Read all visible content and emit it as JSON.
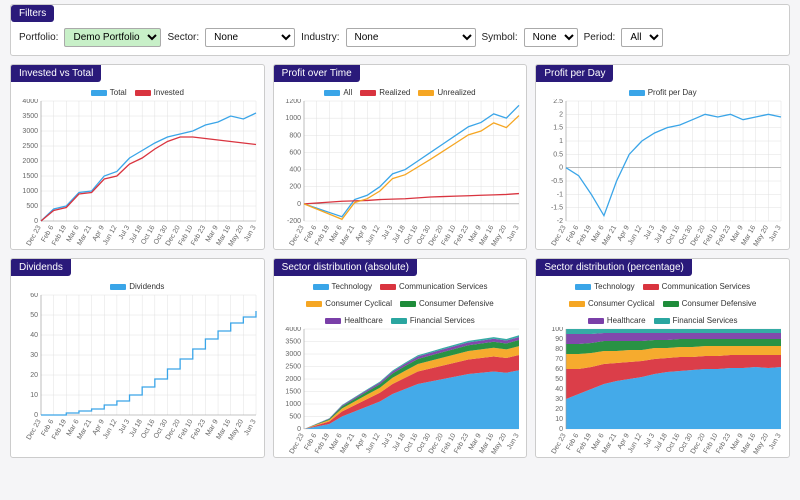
{
  "filters": {
    "title": "Filters",
    "portfolio_label": "Portfolio:",
    "portfolio_value": "Demo Portfolio",
    "sector_label": "Sector:",
    "sector_value": "None",
    "industry_label": "Industry:",
    "industry_value": "None",
    "symbol_label": "Symbol:",
    "symbol_value": "None",
    "period_label": "Period:",
    "period_value": "All"
  },
  "colors": {
    "blue": "#3aa5e8",
    "red": "#d9343f",
    "orange": "#f5a623",
    "green": "#1e8c3a",
    "purple": "#7a3fa8",
    "teal": "#2aa6a0",
    "grid": "#e0e0e0",
    "axis_text": "#666666"
  },
  "x_labels": [
    "Dec 23",
    "Feb 6",
    "Feb 19",
    "Mar 6",
    "Mar 21",
    "Apr 9",
    "Jun 12",
    "Jul 3",
    "Jul 18",
    "Oct 16",
    "Oct 30",
    "Dec 20",
    "Feb 10",
    "Feb 23",
    "Mar 9",
    "Mar 16",
    "May 20",
    "Jun 3"
  ],
  "charts": {
    "invested_vs_total": {
      "title": "Invested vs Total",
      "type": "line",
      "ylim": [
        0,
        4000
      ],
      "ytick_step": 500,
      "legend": [
        {
          "label": "Total",
          "color": "#3aa5e8"
        },
        {
          "label": "Invested",
          "color": "#d9343f"
        }
      ],
      "series": {
        "total": [
          0,
          400,
          500,
          950,
          1000,
          1500,
          1650,
          2100,
          2350,
          2600,
          2800,
          2900,
          3000,
          3200,
          3300,
          3500,
          3400,
          3600
        ],
        "invested": [
          0,
          350,
          450,
          900,
          950,
          1400,
          1500,
          1900,
          2100,
          2400,
          2650,
          2800,
          2800,
          2750,
          2700,
          2650,
          2600,
          2550
        ]
      }
    },
    "profit_over_time": {
      "title": "Profit over Time",
      "type": "line",
      "ylim": [
        -200,
        1200
      ],
      "ytick_step": 200,
      "legend": [
        {
          "label": "All",
          "color": "#3aa5e8"
        },
        {
          "label": "Realized",
          "color": "#d9343f"
        },
        {
          "label": "Unrealized",
          "color": "#f5a623"
        }
      ],
      "series": {
        "all": [
          0,
          -50,
          -100,
          -150,
          50,
          100,
          200,
          350,
          400,
          500,
          600,
          700,
          800,
          900,
          950,
          1050,
          1000,
          1150
        ],
        "realized": [
          0,
          10,
          20,
          30,
          35,
          40,
          50,
          55,
          60,
          70,
          80,
          85,
          90,
          95,
          100,
          105,
          110,
          120
        ],
        "unrealized": [
          0,
          -60,
          -120,
          -180,
          15,
          60,
          150,
          295,
          340,
          430,
          520,
          615,
          710,
          805,
          850,
          945,
          890,
          1030
        ]
      }
    },
    "profit_per_day": {
      "title": "Profit per Day",
      "type": "line",
      "ylim": [
        -2.0,
        2.5
      ],
      "ytick_step": 0.5,
      "legend": [
        {
          "label": "Profit per Day",
          "color": "#3aa5e8"
        }
      ],
      "series": {
        "ppd": [
          0,
          -0.3,
          -1.0,
          -1.8,
          -0.5,
          0.5,
          1.0,
          1.3,
          1.5,
          1.6,
          1.8,
          2.0,
          1.9,
          2.0,
          1.8,
          1.9,
          2.0,
          1.9
        ]
      }
    },
    "dividends": {
      "title": "Dividends",
      "type": "line-step",
      "ylim": [
        0,
        60
      ],
      "ytick_step": 10,
      "legend": [
        {
          "label": "Dividends",
          "color": "#3aa5e8"
        }
      ],
      "series": {
        "div": [
          0,
          0,
          1,
          2,
          3,
          5,
          7,
          10,
          14,
          18,
          23,
          28,
          33,
          38,
          42,
          46,
          49,
          52
        ]
      }
    },
    "sector_abs": {
      "title": "Sector distribution (absolute)",
      "type": "stacked-area",
      "ylim": [
        0,
        4000
      ],
      "ytick_step": 500,
      "legend": [
        {
          "label": "Technology",
          "color": "#3aa5e8"
        },
        {
          "label": "Communication Services",
          "color": "#d9343f"
        },
        {
          "label": "Consumer Cyclical",
          "color": "#f5a623"
        },
        {
          "label": "Consumer Defensive",
          "color": "#1e8c3a"
        },
        {
          "label": "Healthcare",
          "color": "#7a3fa8"
        },
        {
          "label": "Financial Services",
          "color": "#2aa6a0"
        }
      ],
      "series": {
        "tech": [
          0,
          100,
          200,
          500,
          700,
          900,
          1100,
          1400,
          1600,
          1800,
          1900,
          2000,
          2100,
          2200,
          2250,
          2300,
          2250,
          2350
        ],
        "comm": [
          0,
          50,
          100,
          200,
          250,
          300,
          350,
          400,
          450,
          500,
          520,
          540,
          560,
          580,
          590,
          600,
          590,
          610
        ],
        "ccyc": [
          0,
          30,
          60,
          120,
          150,
          180,
          200,
          250,
          280,
          300,
          310,
          320,
          330,
          340,
          345,
          350,
          345,
          355
        ],
        "cdef": [
          0,
          20,
          40,
          80,
          100,
          120,
          140,
          170,
          190,
          200,
          210,
          220,
          225,
          230,
          235,
          240,
          235,
          245
        ],
        "health": [
          0,
          10,
          20,
          40,
          50,
          60,
          70,
          80,
          90,
          100,
          105,
          110,
          112,
          115,
          117,
          120,
          118,
          122
        ],
        "fin": [
          0,
          5,
          10,
          20,
          25,
          30,
          35,
          40,
          45,
          50,
          52,
          55,
          57,
          60,
          62,
          65,
          63,
          67
        ]
      }
    },
    "sector_pct": {
      "title": "Sector distribution (percentage)",
      "type": "stacked-area-100",
      "ylim": [
        0,
        100
      ],
      "ytick_step": 10,
      "legend": [
        {
          "label": "Technology",
          "color": "#3aa5e8"
        },
        {
          "label": "Communication Services",
          "color": "#d9343f"
        },
        {
          "label": "Consumer Cyclical",
          "color": "#f5a623"
        },
        {
          "label": "Consumer Defensive",
          "color": "#1e8c3a"
        },
        {
          "label": "Healthcare",
          "color": "#7a3fa8"
        },
        {
          "label": "Financial Services",
          "color": "#2aa6a0"
        }
      ],
      "series": {
        "tech": [
          30,
          35,
          40,
          45,
          48,
          50,
          52,
          55,
          57,
          58,
          59,
          60,
          60,
          61,
          61,
          62,
          61,
          62
        ],
        "comm": [
          30,
          25,
          22,
          20,
          18,
          17,
          16,
          15,
          14,
          14,
          13,
          13,
          13,
          13,
          13,
          12,
          13,
          12
        ],
        "ccyc": [
          15,
          15,
          14,
          13,
          12,
          12,
          11,
          11,
          10,
          10,
          10,
          10,
          10,
          9,
          9,
          9,
          9,
          9
        ],
        "cdef": [
          10,
          10,
          10,
          10,
          10,
          9,
          9,
          8,
          8,
          8,
          8,
          7,
          7,
          7,
          7,
          7,
          7,
          7
        ],
        "health": [
          10,
          10,
          9,
          8,
          8,
          8,
          8,
          7,
          7,
          6,
          6,
          6,
          6,
          6,
          6,
          6,
          6,
          6
        ],
        "fin": [
          5,
          5,
          5,
          4,
          4,
          4,
          4,
          4,
          4,
          4,
          4,
          4,
          4,
          4,
          4,
          4,
          4,
          4
        ]
      }
    }
  }
}
